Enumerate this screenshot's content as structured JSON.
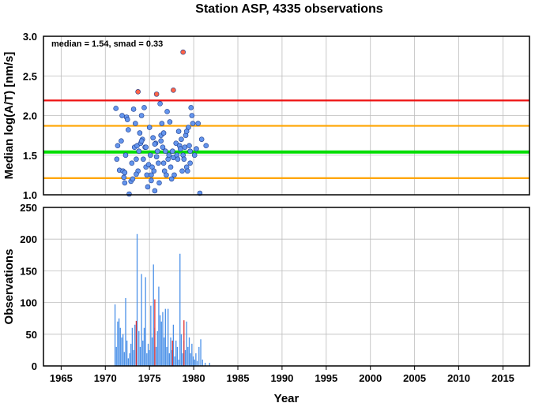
{
  "chart_data": [
    {
      "type": "scatter",
      "title": "Station ASP, 4335 observations",
      "ylabel": "Median log(A/T) [nm/s]",
      "annotation": "median = 1.54, smad = 0.33",
      "xlim": [
        1963,
        2018
      ],
      "ylim": [
        1.0,
        3.0
      ],
      "yticks": [
        "1.0",
        "1.5",
        "2.0",
        "2.5",
        "3.0"
      ],
      "grid": true,
      "reference_lines": [
        {
          "y": 2.19,
          "color": "#ee1111"
        },
        {
          "y": 1.87,
          "color": "#ffa500"
        },
        {
          "y": 1.54,
          "color": "#00dd00"
        },
        {
          "y": 1.21,
          "color": "#ffa500"
        }
      ],
      "series": [
        {
          "color": "#6495ed",
          "points": [
            [
              1971.2,
              2.09
            ],
            [
              1971.4,
              1.62
            ],
            [
              1971.6,
              1.31
            ],
            [
              1971.3,
              1.45
            ],
            [
              1971.8,
              1.68
            ],
            [
              1971.9,
              2.0
            ],
            [
              1972.0,
              1.3
            ],
            [
              1972.1,
              1.22
            ],
            [
              1972.2,
              1.15
            ],
            [
              1972.3,
              1.5
            ],
            [
              1972.4,
              1.98
            ],
            [
              1972.5,
              1.95
            ],
            [
              1972.6,
              1.82
            ],
            [
              1972.7,
              1.01
            ],
            [
              1972.2,
              1.28
            ],
            [
              1972.9,
              1.17
            ],
            [
              1973.0,
              1.4
            ],
            [
              1973.1,
              1.2
            ],
            [
              1973.2,
              2.08
            ],
            [
              1973.3,
              1.6
            ],
            [
              1973.4,
              1.9
            ],
            [
              1973.5,
              1.45
            ],
            [
              1973.6,
              1.62
            ],
            [
              1973.7,
              1.3
            ],
            [
              1973.8,
              1.55
            ],
            [
              1973.9,
              1.78
            ],
            [
              1973.5,
              1.26
            ],
            [
              1974.0,
              1.65
            ],
            [
              1974.1,
              2.0
            ],
            [
              1974.2,
              1.7
            ],
            [
              1974.3,
              1.45
            ],
            [
              1974.4,
              2.1
            ],
            [
              1974.5,
              1.6
            ],
            [
              1974.6,
              1.35
            ],
            [
              1974.7,
              1.25
            ],
            [
              1974.8,
              1.1
            ],
            [
              1974.9,
              1.38
            ],
            [
              1974.1,
              1.68
            ],
            [
              1974.6,
              1.6
            ],
            [
              1975.0,
              1.85
            ],
            [
              1975.1,
              1.5
            ],
            [
              1975.2,
              1.25
            ],
            [
              1975.3,
              1.35
            ],
            [
              1975.4,
              1.72
            ],
            [
              1975.5,
              1.3
            ],
            [
              1975.6,
              1.05
            ],
            [
              1975.7,
              1.65
            ],
            [
              1975.8,
              1.48
            ],
            [
              1975.9,
              1.55
            ],
            [
              1975.2,
              1.18
            ],
            [
              1975.6,
              1.64
            ],
            [
              1976.0,
              1.4
            ],
            [
              1976.1,
              1.15
            ],
            [
              1976.2,
              2.15
            ],
            [
              1976.3,
              1.75
            ],
            [
              1976.4,
              1.9
            ],
            [
              1976.5,
              1.6
            ],
            [
              1976.6,
              1.4
            ],
            [
              1976.7,
              1.3
            ],
            [
              1976.8,
              1.55
            ],
            [
              1976.9,
              1.25
            ],
            [
              1976.3,
              1.68
            ],
            [
              1976.6,
              1.78
            ],
            [
              1977.0,
              2.05
            ],
            [
              1977.1,
              1.45
            ],
            [
              1977.2,
              1.5
            ],
            [
              1977.3,
              1.92
            ],
            [
              1977.4,
              1.35
            ],
            [
              1977.5,
              1.2
            ],
            [
              1977.6,
              1.55
            ],
            [
              1977.7,
              1.47
            ],
            [
              1977.8,
              1.25
            ],
            [
              1978.0,
              1.65
            ],
            [
              1978.1,
              1.5
            ],
            [
              1978.2,
              1.45
            ],
            [
              1978.3,
              1.8
            ],
            [
              1978.4,
              1.62
            ],
            [
              1978.5,
              1.58
            ],
            [
              1978.6,
              1.7
            ],
            [
              1978.7,
              1.3
            ],
            [
              1978.8,
              1.5
            ],
            [
              1978.9,
              1.45
            ],
            [
              1979.0,
              1.6
            ],
            [
              1979.1,
              1.75
            ],
            [
              1979.2,
              1.35
            ],
            [
              1979.3,
              1.3
            ],
            [
              1979.4,
              1.85
            ],
            [
              1979.5,
              1.62
            ],
            [
              1979.6,
              1.4
            ],
            [
              1979.7,
              2.1
            ],
            [
              1979.8,
              2.0
            ],
            [
              1979.9,
              1.9
            ],
            [
              1979.2,
              1.8
            ],
            [
              1979.6,
              1.55
            ],
            [
              1980.1,
              1.5
            ],
            [
              1980.3,
              1.58
            ],
            [
              1980.5,
              1.9
            ],
            [
              1980.7,
              1.02
            ],
            [
              1980.9,
              1.7
            ],
            [
              1981.4,
              1.62
            ]
          ]
        },
        {
          "color": "#ff6347",
          "points": [
            [
              1973.7,
              2.3
            ],
            [
              1975.8,
              2.27
            ],
            [
              1977.7,
              2.32
            ],
            [
              1978.8,
              2.8
            ]
          ]
        }
      ]
    },
    {
      "type": "bar",
      "xlabel": "Year",
      "ylabel": "Observations",
      "xlim": [
        1963,
        2018
      ],
      "ylim": [
        0,
        250
      ],
      "xticks": [
        "1965",
        "1970",
        "1975",
        "1980",
        "1985",
        "1990",
        "1995",
        "2000",
        "2005",
        "2010",
        "2015"
      ],
      "yticks": [
        "0",
        "50",
        "100",
        "150",
        "200",
        "250"
      ],
      "grid": true,
      "series": [
        {
          "color": "#4a90e8",
          "points": [
            [
              1971.1,
              97
            ],
            [
              1971.25,
              30
            ],
            [
              1971.4,
              70
            ],
            [
              1971.55,
              75
            ],
            [
              1971.7,
              60
            ],
            [
              1971.85,
              45
            ],
            [
              1972.0,
              50
            ],
            [
              1972.15,
              22
            ],
            [
              1972.3,
              107
            ],
            [
              1972.45,
              40
            ],
            [
              1972.6,
              12
            ],
            [
              1972.75,
              20
            ],
            [
              1972.9,
              35
            ],
            [
              1973.05,
              60
            ],
            [
              1973.2,
              25
            ],
            [
              1973.35,
              65
            ],
            [
              1973.6,
              208
            ],
            [
              1973.8,
              55
            ],
            [
              1973.95,
              30
            ],
            [
              1974.1,
              145
            ],
            [
              1974.25,
              40
            ],
            [
              1974.4,
              60
            ],
            [
              1974.55,
              140
            ],
            [
              1974.7,
              20
            ],
            [
              1974.85,
              35
            ],
            [
              1975.0,
              25
            ],
            [
              1975.15,
              95
            ],
            [
              1975.3,
              45
            ],
            [
              1975.45,
              160
            ],
            [
              1975.6,
              60
            ],
            [
              1975.75,
              30
            ],
            [
              1975.9,
              55
            ],
            [
              1976.05,
              125
            ],
            [
              1976.2,
              80
            ],
            [
              1976.35,
              70
            ],
            [
              1976.5,
              85
            ],
            [
              1976.65,
              45
            ],
            [
              1976.8,
              90
            ],
            [
              1976.95,
              30
            ],
            [
              1977.1,
              90
            ],
            [
              1977.25,
              20
            ],
            [
              1977.4,
              45
            ],
            [
              1977.55,
              25
            ],
            [
              1977.7,
              65
            ],
            [
              1977.85,
              15
            ],
            [
              1978.0,
              40
            ],
            [
              1978.15,
              30
            ],
            [
              1978.3,
              10
            ],
            [
              1978.45,
              177
            ],
            [
              1978.6,
              50
            ],
            [
              1978.75,
              20
            ],
            [
              1978.9,
              40
            ],
            [
              1979.05,
              25
            ],
            [
              1979.2,
              70
            ],
            [
              1979.35,
              30
            ],
            [
              1979.5,
              45
            ],
            [
              1979.65,
              20
            ],
            [
              1979.8,
              35
            ],
            [
              1979.95,
              15
            ],
            [
              1980.1,
              10
            ],
            [
              1980.25,
              20
            ],
            [
              1980.4,
              8
            ],
            [
              1980.6,
              30
            ],
            [
              1980.8,
              42
            ],
            [
              1981.0,
              10
            ],
            [
              1981.3,
              5
            ],
            [
              1981.8,
              5
            ]
          ]
        },
        {
          "color": "#e03030",
          "points": [
            [
              1973.5,
              71
            ],
            [
              1975.6,
              105
            ],
            [
              1977.6,
              40
            ],
            [
              1978.9,
              72
            ]
          ]
        }
      ]
    }
  ]
}
